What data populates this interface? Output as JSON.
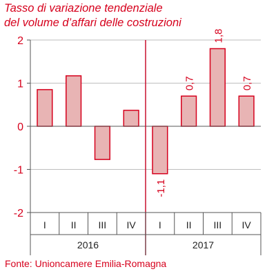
{
  "title_lines": [
    "Tasso di variazione tendenziale",
    "del volume d’affari delle costruzioni"
  ],
  "source": "Fonte: Unioncamere Emilia-Romagna",
  "chart_data": {
    "type": "bar",
    "title": "Tasso di variazione tendenziale del volume d’affari delle costruzioni",
    "categories": [
      "I",
      "II",
      "III",
      "IV",
      "I",
      "II",
      "III",
      "IV"
    ],
    "years": [
      {
        "label": "2016",
        "quarters": [
          "I",
          "II",
          "III",
          "IV"
        ]
      },
      {
        "label": "2017",
        "quarters": [
          "I",
          "II",
          "III",
          "IV"
        ]
      }
    ],
    "values": [
      0.85,
      1.17,
      -0.77,
      0.37,
      -1.1,
      0.7,
      1.8,
      0.7
    ],
    "data_labels": [
      "",
      "",
      "",
      "",
      "-1,1",
      "0,7",
      "1,8",
      "0,7"
    ],
    "yticks": [
      "2",
      "1",
      "0",
      "-1",
      "-2"
    ],
    "ylim": [
      -2,
      2
    ],
    "grid": "horizontal",
    "separator_between_years": true,
    "colors": {
      "bar_fill": "#e8b4b4",
      "bar_stroke": "#d6001c",
      "separator": "#c8102e",
      "text": "#d6001c"
    }
  }
}
